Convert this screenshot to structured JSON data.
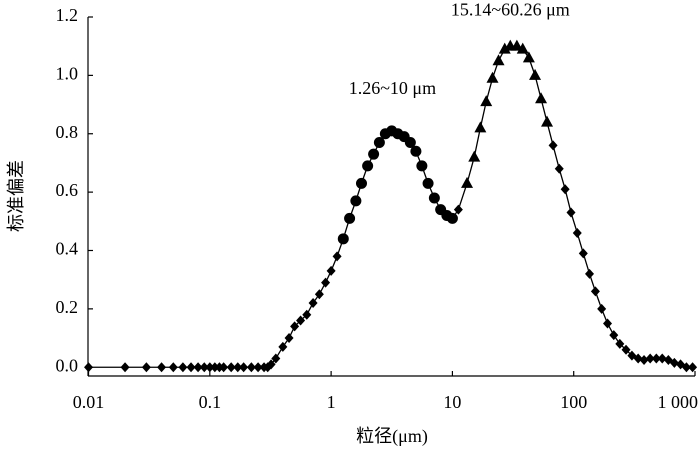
{
  "chart_data": {
    "type": "line",
    "x_label": "粒径(μm)",
    "y_label": "标准偏差",
    "log_x": true,
    "color": "#000000",
    "xlim": [
      0.0099,
      1000
    ],
    "ylim": [
      -0.03,
      1.2
    ],
    "xticks": [
      0.01,
      0.1,
      1,
      10,
      100,
      {
        "value": 1000,
        "label": "1 000"
      }
    ],
    "yticks": [
      {
        "value": 0,
        "label": "0.0"
      },
      0.2,
      0.4,
      0.6,
      0.8,
      {
        "value": 1,
        "label": "1.0"
      },
      1.2
    ],
    "annotations": [
      {
        "text": "1.26~10 μm",
        "x": 3.2,
        "y": 0.95
      },
      {
        "text": "15.14~60.26 μm",
        "x": 30,
        "y": 1.22
      }
    ],
    "series": [
      {
        "marker": "diamond",
        "x": [
          0.01,
          0.02,
          0.03,
          0.04,
          0.05,
          0.06,
          0.07,
          0.08,
          0.09,
          0.1,
          0.11,
          0.12,
          0.13,
          0.15,
          0.17,
          0.19,
          0.22,
          0.25,
          0.28,
          0.3,
          0.32,
          0.35,
          0.4,
          0.45,
          0.5,
          0.56,
          0.63,
          0.71,
          0.8,
          0.9,
          1.0,
          1.12
        ],
        "values": [
          0,
          0,
          0,
          0,
          0,
          0,
          0,
          0,
          0,
          0,
          0,
          0,
          0,
          0,
          0,
          0,
          0,
          0,
          0,
          0,
          0.01,
          0.03,
          0.07,
          0.1,
          0.14,
          0.16,
          0.18,
          0.22,
          0.25,
          0.29,
          0.33,
          0.38
        ]
      },
      {
        "marker": "circle",
        "x": [
          1.26,
          1.42,
          1.6,
          1.78,
          2.0,
          2.24,
          2.5,
          2.8,
          3.16,
          3.55,
          4.0,
          4.5,
          5.0,
          5.6,
          6.3,
          7.1,
          8.0,
          9.0,
          10
        ],
        "values": [
          0.44,
          0.51,
          0.57,
          0.63,
          0.69,
          0.73,
          0.77,
          0.8,
          0.81,
          0.8,
          0.79,
          0.77,
          0.74,
          0.69,
          0.63,
          0.58,
          0.54,
          0.52,
          0.51
        ]
      },
      {
        "marker": "diamond",
        "x": [
          11.2
        ],
        "values": [
          0.54
        ]
      },
      {
        "marker": "triangle",
        "x": [
          13.2,
          15.14,
          17,
          19,
          21.4,
          24,
          27,
          30,
          34,
          38,
          42.7,
          48,
          53.8,
          60.26
        ],
        "values": [
          0.63,
          0.72,
          0.82,
          0.91,
          0.99,
          1.05,
          1.09,
          1.1,
          1.1,
          1.09,
          1.06,
          1.0,
          0.92,
          0.84
        ]
      },
      {
        "marker": "diamond",
        "x": [
          67.6,
          76,
          85,
          95,
          107,
          120,
          135,
          151,
          170,
          190,
          214,
          240,
          270,
          302,
          340,
          380,
          427,
          480,
          537,
          603,
          676,
          760,
          850,
          955
        ],
        "values": [
          0.76,
          0.68,
          0.61,
          0.53,
          0.46,
          0.39,
          0.32,
          0.26,
          0.2,
          0.15,
          0.11,
          0.08,
          0.06,
          0.04,
          0.03,
          0.025,
          0.03,
          0.03,
          0.03,
          0.025,
          0.015,
          0.01,
          0,
          0
        ]
      }
    ]
  }
}
